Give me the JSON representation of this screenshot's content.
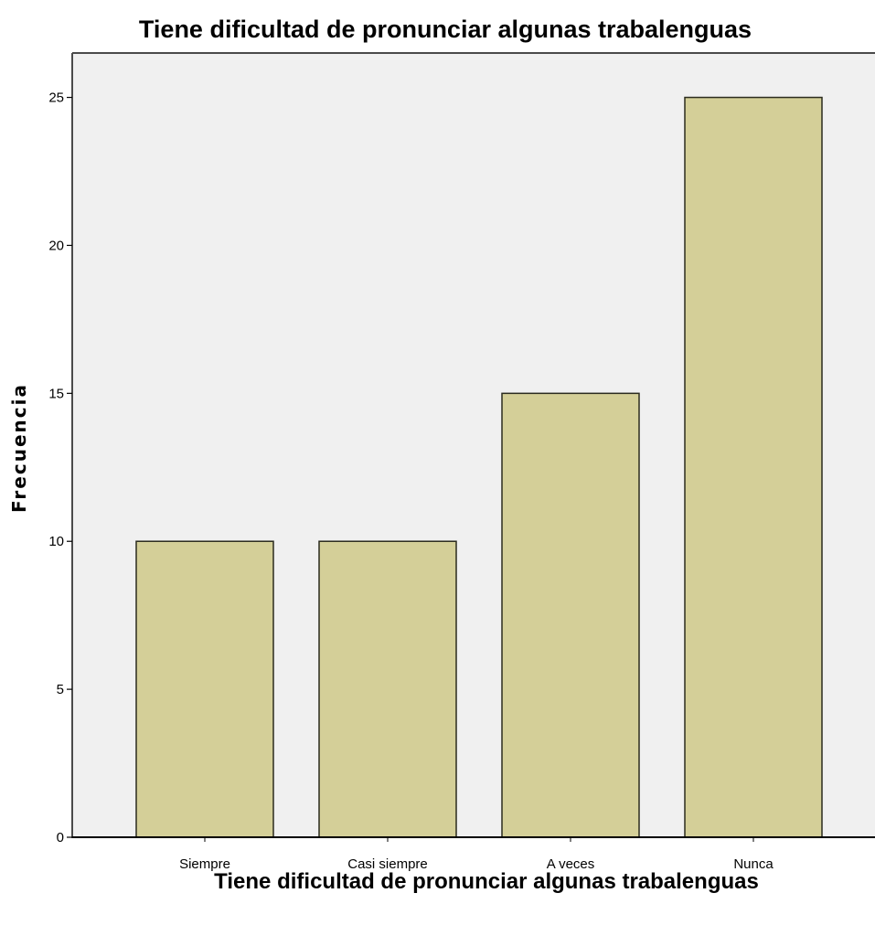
{
  "chart_data": {
    "type": "bar",
    "title": "Tiene dificultad de pronunciar algunas trabalenguas",
    "xlabel": "Tiene dificultad de pronunciar algunas trabalenguas",
    "ylabel": "Frecuencia",
    "categories": [
      "Siempre",
      "Casi siempre",
      "A veces",
      "Nunca"
    ],
    "values": [
      10,
      10,
      15,
      25
    ],
    "ylim": [
      0,
      26.5
    ],
    "yticks": [
      0,
      5,
      10,
      15,
      20,
      25
    ],
    "grid": false,
    "colors": {
      "bar_fill": "#d4cf98",
      "bar_stroke": "#2b2b1e",
      "plot_background": "#f0f0f0"
    }
  }
}
